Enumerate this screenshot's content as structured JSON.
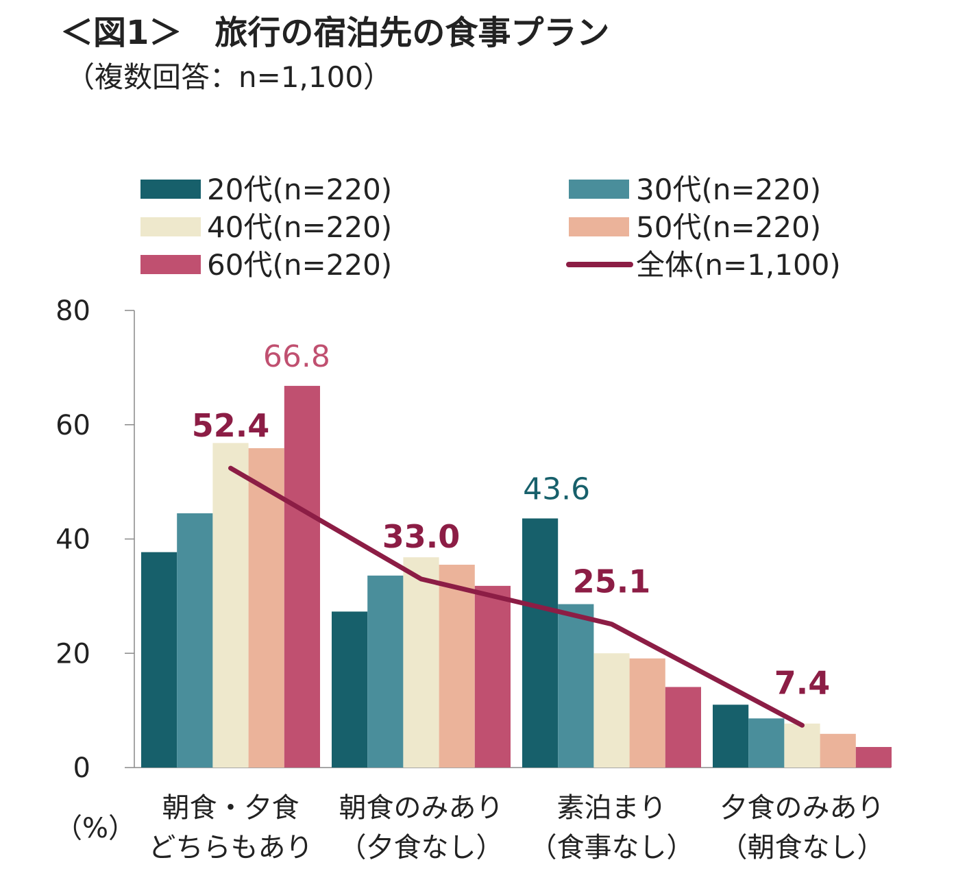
{
  "header": {
    "title": "＜図1＞　旅行の宿泊先の食事プラン",
    "subtitle": "（複数回答：n=1,100）"
  },
  "chart_data": {
    "type": "bar",
    "title": "＜図1＞　旅行の宿泊先の食事プラン",
    "subtitle": "（複数回答：n=1,100）",
    "ylabel": "（%）",
    "ylim": [
      0,
      80
    ],
    "yticks": [
      0,
      20,
      40,
      60,
      80
    ],
    "categories": [
      [
        "朝食・夕食",
        "どちらもあり"
      ],
      [
        "朝食のみあり",
        "（夕食なし）"
      ],
      [
        "素泊まり",
        "（食事なし）"
      ],
      [
        "夕食のみあり",
        "（朝食なし）"
      ]
    ],
    "series": [
      {
        "name": "20代(n=220)",
        "color": "#17606B",
        "values": [
          37.7,
          27.3,
          43.6,
          11.0
        ]
      },
      {
        "name": "30代(n=220)",
        "color": "#4A8E9B",
        "values": [
          44.5,
          33.6,
          28.6,
          8.6
        ]
      },
      {
        "name": "40代(n=220)",
        "color": "#EEE8CC",
        "values": [
          56.8,
          36.8,
          20.0,
          7.7
        ]
      },
      {
        "name": "50代(n=220)",
        "color": "#EBB39A",
        "values": [
          55.9,
          35.5,
          19.1,
          5.9
        ]
      },
      {
        "name": "60代(n=220)",
        "color": "#C05070",
        "values": [
          66.8,
          31.8,
          14.1,
          3.6
        ]
      }
    ],
    "line_series": {
      "name": "全体(n=1,100)",
      "color": "#8C1D45",
      "values": [
        52.4,
        33.0,
        25.1,
        7.4
      ]
    },
    "line_labels": [
      "52.4",
      "33.0",
      "25.1",
      "7.4"
    ],
    "highlight_labels": [
      {
        "text": "66.8",
        "category": 0,
        "series": 4,
        "color": "#C05070"
      },
      {
        "text": "43.6",
        "category": 2,
        "series": 0,
        "color": "#17606B"
      }
    ],
    "legend_position": "top"
  }
}
